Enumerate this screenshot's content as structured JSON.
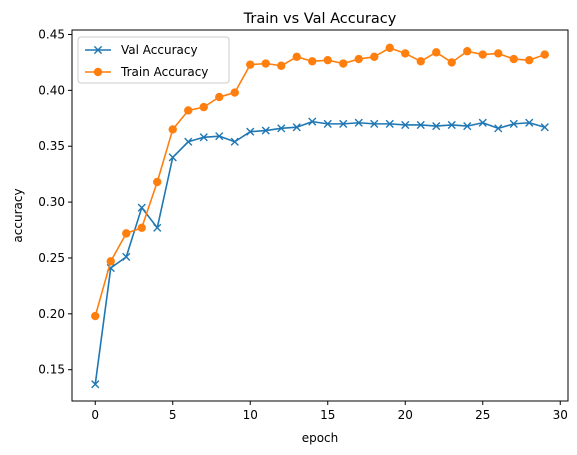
{
  "chart_data": {
    "type": "line",
    "title": "Train vs Val Accuracy",
    "xlabel": "epoch",
    "ylabel": "accuracy",
    "xlim": [
      -1.5,
      30.5
    ],
    "ylim": [
      0.122,
      0.454
    ],
    "x_ticks": [
      0,
      5,
      10,
      15,
      20,
      25,
      30
    ],
    "y_ticks": [
      0.15,
      0.2,
      0.25,
      0.3,
      0.35,
      0.4,
      0.45
    ],
    "x_tick_labels": [
      "0",
      "5",
      "10",
      "15",
      "20",
      "25",
      "30"
    ],
    "y_tick_labels": [
      "0.15",
      "0.20",
      "0.25",
      "0.30",
      "0.35",
      "0.40",
      "0.45"
    ],
    "grid": false,
    "legend_position": "top-left",
    "x": [
      0,
      1,
      2,
      3,
      4,
      5,
      6,
      7,
      8,
      9,
      10,
      11,
      12,
      13,
      14,
      15,
      16,
      17,
      18,
      19,
      20,
      21,
      22,
      23,
      24,
      25,
      26,
      27,
      28,
      29
    ],
    "series": [
      {
        "name": "Val Accuracy",
        "color": "#1f77b4",
        "marker": "x",
        "values": [
          0.137,
          0.241,
          0.251,
          0.295,
          0.277,
          0.34,
          0.354,
          0.358,
          0.359,
          0.354,
          0.363,
          0.364,
          0.366,
          0.367,
          0.372,
          0.37,
          0.37,
          0.371,
          0.37,
          0.37,
          0.369,
          0.369,
          0.368,
          0.369,
          0.368,
          0.371,
          0.366,
          0.37,
          0.371,
          0.367
        ]
      },
      {
        "name": "Train Accuracy",
        "color": "#ff7f0e",
        "marker": "o",
        "values": [
          0.198,
          0.247,
          0.272,
          0.277,
          0.318,
          0.365,
          0.382,
          0.385,
          0.394,
          0.398,
          0.423,
          0.424,
          0.422,
          0.43,
          0.426,
          0.427,
          0.424,
          0.428,
          0.43,
          0.438,
          0.433,
          0.426,
          0.434,
          0.425,
          0.435,
          0.432,
          0.433,
          0.428,
          0.427,
          0.432
        ]
      }
    ]
  }
}
